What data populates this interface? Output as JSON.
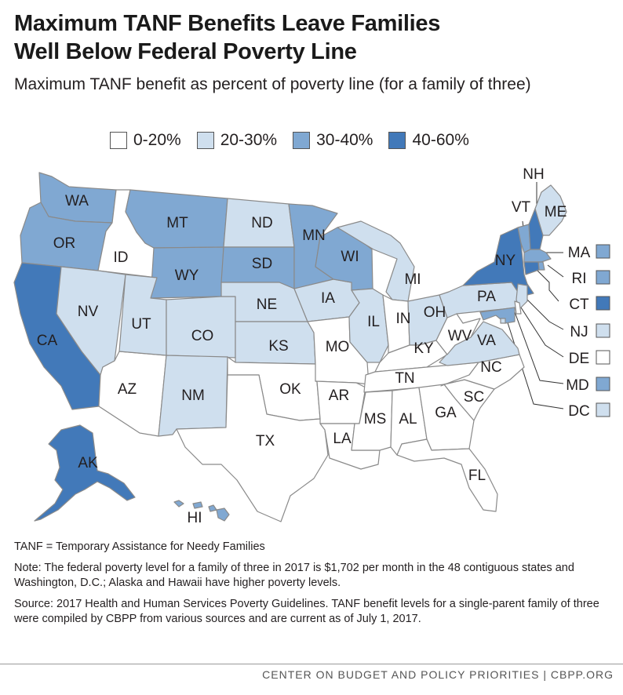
{
  "title_line1": "Maximum TANF Benefits Leave Families",
  "title_line2": "Well Below Federal Poverty Line",
  "subtitle": "Maximum TANF benefit as percent of poverty line (for a family of three)",
  "colors": {
    "0-20%": "#ffffff",
    "20-30%": "#cfdfee",
    "30-40%": "#80a8d2",
    "40-60%": "#4279b9",
    "border": "#8a8a8a"
  },
  "legend": [
    {
      "label": "0-20%",
      "bin": "0-20%"
    },
    {
      "label": "20-30%",
      "bin": "20-30%"
    },
    {
      "label": "30-40%",
      "bin": "30-40%"
    },
    {
      "label": "40-60%",
      "bin": "40-60%"
    }
  ],
  "states": [
    {
      "abbr": "WA",
      "bin": "30-40%"
    },
    {
      "abbr": "OR",
      "bin": "30-40%"
    },
    {
      "abbr": "CA",
      "bin": "40-60%"
    },
    {
      "abbr": "ID",
      "bin": "0-20%"
    },
    {
      "abbr": "NV",
      "bin": "20-30%"
    },
    {
      "abbr": "AZ",
      "bin": "0-20%"
    },
    {
      "abbr": "MT",
      "bin": "30-40%"
    },
    {
      "abbr": "WY",
      "bin": "30-40%"
    },
    {
      "abbr": "UT",
      "bin": "20-30%"
    },
    {
      "abbr": "CO",
      "bin": "20-30%"
    },
    {
      "abbr": "NM",
      "bin": "20-30%"
    },
    {
      "abbr": "ND",
      "bin": "20-30%"
    },
    {
      "abbr": "SD",
      "bin": "30-40%"
    },
    {
      "abbr": "NE",
      "bin": "20-30%"
    },
    {
      "abbr": "KS",
      "bin": "20-30%"
    },
    {
      "abbr": "OK",
      "bin": "0-20%"
    },
    {
      "abbr": "TX",
      "bin": "0-20%"
    },
    {
      "abbr": "MN",
      "bin": "30-40%"
    },
    {
      "abbr": "IA",
      "bin": "20-30%"
    },
    {
      "abbr": "MO",
      "bin": "0-20%"
    },
    {
      "abbr": "AR",
      "bin": "0-20%"
    },
    {
      "abbr": "LA",
      "bin": "0-20%"
    },
    {
      "abbr": "WI",
      "bin": "30-40%"
    },
    {
      "abbr": "IL",
      "bin": "20-30%"
    },
    {
      "abbr": "MI",
      "bin": "20-30%"
    },
    {
      "abbr": "IN",
      "bin": "0-20%"
    },
    {
      "abbr": "OH",
      "bin": "20-30%"
    },
    {
      "abbr": "KY",
      "bin": "0-20%"
    },
    {
      "abbr": "TN",
      "bin": "0-20%"
    },
    {
      "abbr": "MS",
      "bin": "0-20%"
    },
    {
      "abbr": "AL",
      "bin": "0-20%"
    },
    {
      "abbr": "GA",
      "bin": "0-20%"
    },
    {
      "abbr": "FL",
      "bin": "0-20%"
    },
    {
      "abbr": "SC",
      "bin": "0-20%"
    },
    {
      "abbr": "NC",
      "bin": "0-20%"
    },
    {
      "abbr": "VA",
      "bin": "20-30%"
    },
    {
      "abbr": "WV",
      "bin": "0-20%"
    },
    {
      "abbr": "PA",
      "bin": "20-30%"
    },
    {
      "abbr": "NY",
      "bin": "40-60%"
    },
    {
      "abbr": "VT",
      "bin": "30-40%"
    },
    {
      "abbr": "NH",
      "bin": "40-60%"
    },
    {
      "abbr": "ME",
      "bin": "20-30%"
    },
    {
      "abbr": "MA",
      "bin": "30-40%"
    },
    {
      "abbr": "RI",
      "bin": "30-40%"
    },
    {
      "abbr": "CT",
      "bin": "40-60%"
    },
    {
      "abbr": "NJ",
      "bin": "20-30%"
    },
    {
      "abbr": "DE",
      "bin": "0-20%"
    },
    {
      "abbr": "MD",
      "bin": "30-40%"
    },
    {
      "abbr": "DC",
      "bin": "20-30%"
    },
    {
      "abbr": "AK",
      "bin": "40-60%"
    },
    {
      "abbr": "HI",
      "bin": "30-40%"
    }
  ],
  "notes": {
    "abbrev": "TANF = Temporary Assistance for Needy Families",
    "note": "Note: The federal poverty level for a family of three in 2017 is $1,702 per month in the 48 contiguous states and Washington, D.C.; Alaska and Hawaii have higher poverty levels.",
    "source": "Source:  2017 Health and Human Services Poverty Guidelines. TANF benefit levels for a single-parent family of three were compiled by CBPP from various sources and are current as of July 1, 2017."
  },
  "footer": "CENTER ON BUDGET AND POLICY PRIORITIES | CBPP.ORG"
}
